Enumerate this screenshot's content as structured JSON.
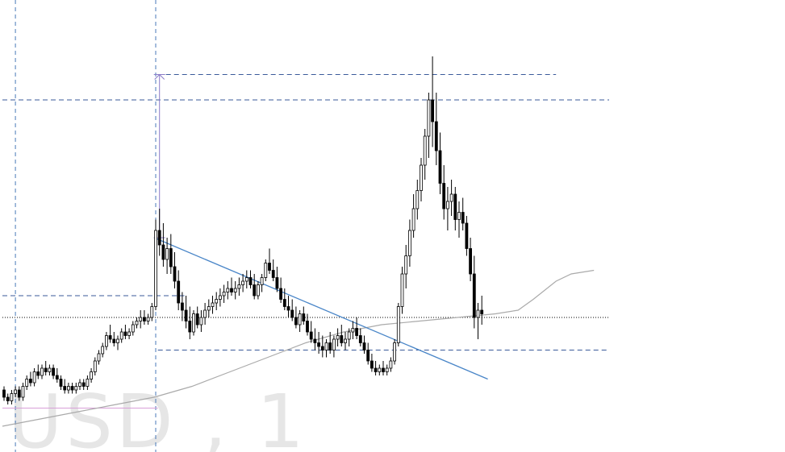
{
  "chart_data": {
    "type": "candlestick",
    "title": "",
    "watermark": "USD , 1",
    "grid": false,
    "y_range": [
      0,
      100
    ],
    "x_count": 160,
    "colors": {
      "background": "#ffffff",
      "bull_body": "#ffffff",
      "bear_body": "#000000",
      "wick": "#000000",
      "sma_line": "#aaaaaa",
      "trend_line": "#4a86c8",
      "measure_arrow": "#8b7cc8",
      "dashed_levels": "#3a5a9a",
      "current_price_line": "#000000",
      "session_line": "#d8a0d8",
      "vertical_markers": "#4a7ab8",
      "watermark": "#e6e6e6",
      "highlight_candle": "#c08050"
    },
    "candles": [
      [
        8,
        9,
        5,
        6
      ],
      [
        6,
        7,
        4,
        5
      ],
      [
        5,
        8,
        4,
        7
      ],
      [
        7,
        9,
        6,
        8
      ],
      [
        8,
        9,
        5,
        6
      ],
      [
        6,
        10,
        5,
        9
      ],
      [
        9,
        12,
        8,
        11
      ],
      [
        11,
        13,
        9,
        10
      ],
      [
        10,
        14,
        9,
        13
      ],
      [
        13,
        15,
        11,
        12
      ],
      [
        12,
        15,
        11,
        14
      ],
      [
        14,
        16,
        12,
        13
      ],
      [
        13,
        15,
        12,
        14
      ],
      [
        14,
        15,
        11,
        12
      ],
      [
        12,
        14,
        10,
        11
      ],
      [
        11,
        12,
        8,
        9
      ],
      [
        9,
        11,
        7,
        8
      ],
      [
        8,
        10,
        7,
        9
      ],
      [
        9,
        10,
        7,
        8
      ],
      [
        8,
        10,
        7,
        9
      ],
      [
        9,
        11,
        8,
        10
      ],
      [
        10,
        11,
        8,
        9
      ],
      [
        9,
        12,
        8,
        11
      ],
      [
        11,
        14,
        10,
        13
      ],
      [
        13,
        17,
        12,
        16
      ],
      [
        16,
        19,
        15,
        18
      ],
      [
        18,
        21,
        17,
        20
      ],
      [
        20,
        24,
        19,
        23
      ],
      [
        23,
        26,
        21,
        22
      ],
      [
        22,
        24,
        20,
        21
      ],
      [
        21,
        23,
        19,
        22
      ],
      [
        22,
        25,
        21,
        24
      ],
      [
        24,
        26,
        22,
        23
      ],
      [
        23,
        25,
        22,
        24
      ],
      [
        24,
        27,
        23,
        26
      ],
      [
        26,
        28,
        25,
        27
      ],
      [
        27,
        30,
        25,
        28
      ],
      [
        28,
        30,
        26,
        27
      ],
      [
        27,
        29,
        26,
        28
      ],
      [
        28,
        32,
        27,
        31
      ],
      [
        31,
        55,
        30,
        52
      ],
      [
        52,
        58,
        45,
        48
      ],
      [
        48,
        54,
        42,
        44
      ],
      [
        44,
        50,
        40,
        47
      ],
      [
        47,
        51,
        40,
        42
      ],
      [
        42,
        46,
        36,
        38
      ],
      [
        38,
        41,
        30,
        32
      ],
      [
        32,
        35,
        27,
        30
      ],
      [
        30,
        34,
        25,
        27
      ],
      [
        27,
        31,
        22,
        24
      ],
      [
        24,
        30,
        23,
        29
      ],
      [
        29,
        31,
        25,
        26
      ],
      [
        26,
        30,
        24,
        28
      ],
      [
        28,
        32,
        26,
        30
      ],
      [
        30,
        33,
        28,
        31
      ],
      [
        31,
        34,
        29,
        32
      ],
      [
        32,
        35,
        30,
        33
      ],
      [
        33,
        36,
        31,
        34
      ],
      [
        34,
        37,
        32,
        35
      ],
      [
        35,
        38,
        33,
        36
      ],
      [
        36,
        39,
        34,
        35
      ],
      [
        35,
        38,
        33,
        36
      ],
      [
        36,
        39,
        34,
        37
      ],
      [
        37,
        40,
        35,
        38
      ],
      [
        38,
        41,
        36,
        39
      ],
      [
        39,
        41,
        36,
        37
      ],
      [
        37,
        40,
        33,
        34
      ],
      [
        34,
        38,
        33,
        37
      ],
      [
        37,
        40,
        35,
        39
      ],
      [
        39,
        44,
        38,
        43
      ],
      [
        43,
        47,
        40,
        41
      ],
      [
        41,
        44,
        38,
        39
      ],
      [
        39,
        42,
        35,
        36
      ],
      [
        36,
        39,
        32,
        33
      ],
      [
        33,
        36,
        30,
        31
      ],
      [
        31,
        34,
        28,
        30
      ],
      [
        30,
        33,
        27,
        28
      ],
      [
        28,
        31,
        25,
        26
      ],
      [
        26,
        30,
        24,
        29
      ],
      [
        29,
        31,
        26,
        27
      ],
      [
        27,
        29,
        23,
        24
      ],
      [
        24,
        27,
        21,
        22
      ],
      [
        22,
        25,
        19,
        21
      ],
      [
        21,
        24,
        18,
        20
      ],
      [
        20,
        23,
        17,
        19
      ],
      [
        19,
        22,
        17,
        21
      ],
      [
        21,
        24,
        18,
        19
      ],
      [
        19,
        23,
        17,
        22
      ],
      [
        22,
        25,
        20,
        23
      ],
      [
        23,
        26,
        20,
        21
      ],
      [
        21,
        24,
        19,
        22
      ],
      [
        22,
        25,
        20,
        24
      ],
      [
        24,
        27,
        22,
        25
      ],
      [
        25,
        28,
        22,
        23
      ],
      [
        23,
        25,
        20,
        21
      ],
      [
        21,
        23,
        18,
        19
      ],
      [
        19,
        21,
        15,
        16
      ],
      [
        16,
        18,
        13,
        14
      ],
      [
        14,
        16,
        12,
        13
      ],
      [
        13,
        15,
        12,
        14
      ],
      [
        14,
        16,
        12,
        13
      ],
      [
        13,
        15,
        12,
        14
      ],
      [
        14,
        17,
        13,
        16
      ],
      [
        16,
        22,
        15,
        21
      ],
      [
        21,
        32,
        20,
        31
      ],
      [
        31,
        42,
        29,
        40
      ],
      [
        40,
        48,
        36,
        45
      ],
      [
        45,
        55,
        42,
        52
      ],
      [
        52,
        62,
        50,
        58
      ],
      [
        58,
        66,
        55,
        63
      ],
      [
        63,
        72,
        60,
        70
      ],
      [
        70,
        80,
        66,
        78
      ],
      [
        78,
        90,
        72,
        88
      ],
      [
        88,
        100,
        75,
        82
      ],
      [
        82,
        90,
        70,
        74
      ],
      [
        74,
        79,
        62,
        65
      ],
      [
        65,
        70,
        55,
        58
      ],
      [
        58,
        64,
        52,
        60
      ],
      [
        60,
        66,
        56,
        62
      ],
      [
        62,
        64,
        52,
        55
      ],
      [
        55,
        60,
        50,
        57
      ],
      [
        57,
        61,
        52,
        54
      ],
      [
        54,
        56,
        45,
        47
      ],
      [
        47,
        50,
        38,
        40
      ],
      [
        40,
        45,
        25,
        28
      ],
      [
        28,
        32,
        22,
        30
      ],
      [
        30,
        34,
        26,
        29
      ]
    ],
    "sma": [
      [
        0,
        -2
      ],
      [
        10,
        0
      ],
      [
        20,
        2
      ],
      [
        30,
        4
      ],
      [
        40,
        6
      ],
      [
        50,
        9
      ],
      [
        60,
        13
      ],
      [
        70,
        17
      ],
      [
        80,
        21
      ],
      [
        90,
        24
      ],
      [
        100,
        26
      ],
      [
        110,
        27
      ],
      [
        120,
        28
      ],
      [
        130,
        29
      ],
      [
        136,
        30
      ],
      [
        140,
        33
      ],
      [
        146,
        38
      ],
      [
        150,
        40
      ],
      [
        156,
        41
      ]
    ],
    "trend_line": {
      "from": [
        40,
        50
      ],
      "to": [
        128,
        11
      ]
    },
    "measure_arrow": {
      "x": 41,
      "from": 50,
      "to": 95
    },
    "levels": [
      {
        "y": 95,
        "x_from": 41,
        "x_to": 146,
        "style": "dashed"
      },
      {
        "y": 88,
        "x_from": 0,
        "x_to": 160,
        "style": "dashed"
      },
      {
        "y": 34,
        "x_from": 0,
        "x_to": 48,
        "style": "dashed"
      },
      {
        "y": 28,
        "x_from": 0,
        "x_to": 160,
        "style": "dotted"
      },
      {
        "y": 19,
        "x_from": 41,
        "x_to": 160,
        "style": "dashed"
      },
      {
        "y": 3,
        "x_from": 0,
        "x_to": 41,
        "style": "solid"
      }
    ],
    "vertical_markers": [
      3,
      40
    ]
  }
}
